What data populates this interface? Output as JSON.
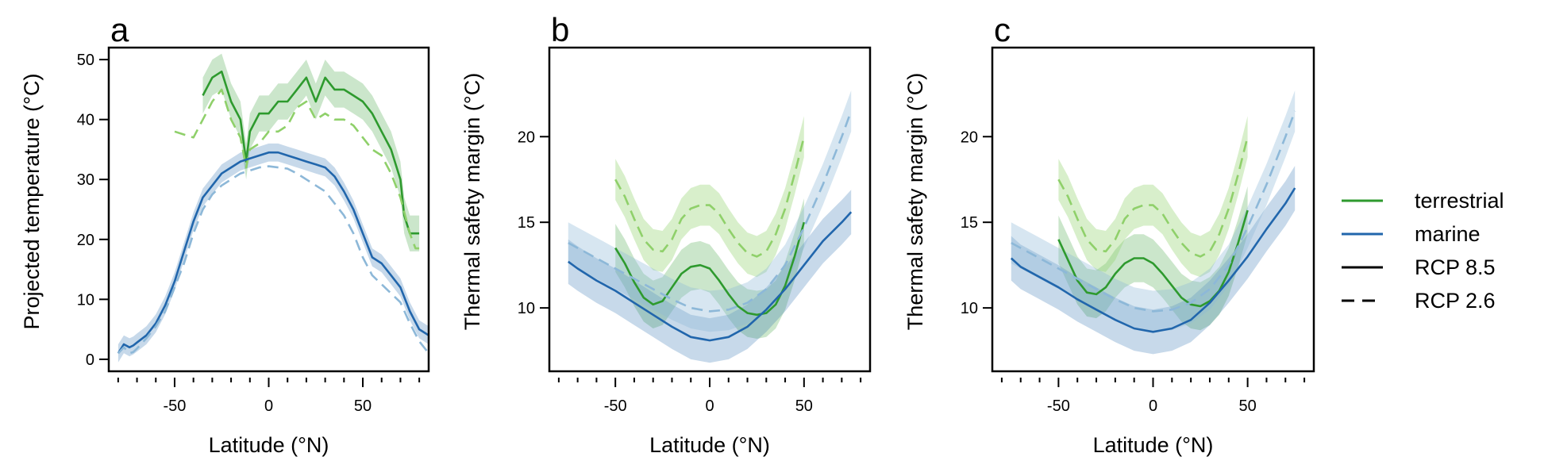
{
  "colors": {
    "terrestrial": "#2e9a2e",
    "terrestrial_light": "#8fd06a",
    "marine": "#2166ac",
    "marine_light": "#8db8d8"
  },
  "legend": {
    "items": [
      {
        "label": "terrestrial",
        "style": "solid",
        "color": "#2e9a2e"
      },
      {
        "label": "marine",
        "style": "solid",
        "color": "#2166ac"
      },
      {
        "label": "RCP 8.5",
        "style": "solid",
        "color": "#000000"
      },
      {
        "label": "RCP 2.6",
        "style": "dashed",
        "color": "#000000"
      }
    ]
  },
  "chart_data": [
    {
      "panel": "a",
      "type": "line",
      "xlabel": "Latitude (°N)",
      "ylabel": "Projected temperature (°C)",
      "xlim": [
        -85,
        85
      ],
      "ylim": [
        -2,
        52
      ],
      "xticks": [
        -50,
        0,
        50
      ],
      "yticks": [
        0,
        10,
        20,
        30,
        40,
        50
      ],
      "series": [
        {
          "group": "terrestrial",
          "scenario": "RCP 8.5",
          "band": 3,
          "x": [
            -45,
            -40,
            -35,
            -30,
            -25,
            -20,
            -15,
            -12,
            -10,
            -5,
            0,
            5,
            10,
            15,
            20,
            25,
            30,
            35,
            40,
            45,
            50,
            55,
            60,
            65,
            70,
            72,
            75,
            78,
            80
          ],
          "y": [
            null,
            null,
            44,
            47,
            48,
            43,
            40,
            33,
            38,
            41,
            41,
            43,
            43,
            45,
            47,
            43,
            47,
            45,
            45,
            44,
            43,
            41,
            38,
            35,
            30,
            24,
            21,
            21,
            21
          ]
        },
        {
          "group": "terrestrial",
          "scenario": "RCP 2.6",
          "band": 0,
          "x": [
            -50,
            -45,
            -40,
            -35,
            -30,
            -25,
            -20,
            -15,
            -12,
            -10,
            -5,
            0,
            5,
            10,
            15,
            20,
            25,
            30,
            35,
            40,
            45,
            50,
            55,
            60,
            65,
            70,
            75,
            78,
            80
          ],
          "y": [
            38,
            37.5,
            37,
            40,
            43,
            45,
            40,
            37,
            32,
            35,
            36,
            38,
            38,
            39,
            42,
            43,
            40,
            41,
            40,
            40,
            39,
            37,
            35,
            34,
            31,
            27,
            21,
            18.5,
            18.5
          ]
        },
        {
          "group": "marine",
          "scenario": "RCP 8.5",
          "band": 1.5,
          "x": [
            -80,
            -77,
            -74,
            -72,
            -70,
            -65,
            -60,
            -55,
            -50,
            -45,
            -40,
            -35,
            -30,
            -25,
            -20,
            -15,
            -10,
            -5,
            0,
            5,
            10,
            15,
            20,
            25,
            30,
            35,
            40,
            45,
            50,
            55,
            60,
            65,
            70,
            75,
            80,
            85
          ],
          "y": [
            1,
            2.5,
            2,
            2.3,
            2.8,
            4,
            6,
            9,
            13,
            18,
            23,
            27,
            29,
            31,
            32,
            33,
            33.5,
            34,
            34.5,
            34.5,
            34,
            33.5,
            33,
            32.5,
            32,
            30.5,
            28,
            25,
            21,
            17,
            16,
            14,
            12,
            8,
            5,
            4
          ]
        },
        {
          "group": "marine",
          "scenario": "RCP 2.6",
          "band": 0,
          "x": [
            -80,
            -77,
            -74,
            -72,
            -70,
            -65,
            -60,
            -55,
            -50,
            -45,
            -40,
            -35,
            -30,
            -25,
            -20,
            -15,
            -10,
            -5,
            0,
            5,
            10,
            15,
            20,
            25,
            30,
            35,
            40,
            45,
            50,
            55,
            60,
            65,
            70,
            75,
            80,
            85
          ],
          "y": [
            1,
            2,
            1,
            1.2,
            1.8,
            3.5,
            5.5,
            8,
            12,
            16,
            21,
            25,
            27.5,
            29,
            30,
            31,
            31.5,
            32,
            32.2,
            32,
            31.8,
            31,
            30,
            29,
            28,
            26,
            24,
            21,
            17,
            14,
            12.5,
            11,
            9.5,
            6,
            3,
            1
          ]
        }
      ]
    },
    {
      "panel": "b",
      "type": "line",
      "xlabel": "Latitude (°N)",
      "ylabel": "Thermal safety margin (°C)",
      "xlim": [
        -85,
        85
      ],
      "ylim": [
        6.3,
        25.2
      ],
      "xticks": [
        -50,
        0,
        50
      ],
      "yticks": [
        10,
        15,
        20
      ],
      "series": [
        {
          "group": "terrestrial",
          "scenario": "RCP 8.5",
          "band": 1.4,
          "x": [
            -50,
            -45,
            -40,
            -35,
            -30,
            -25,
            -20,
            -15,
            -10,
            -5,
            0,
            5,
            10,
            15,
            20,
            25,
            30,
            35,
            40,
            45,
            50
          ],
          "y": [
            13.5,
            12.6,
            11.5,
            10.6,
            10.2,
            10.4,
            11.2,
            12,
            12.4,
            12.5,
            12.3,
            11.6,
            10.8,
            10.1,
            9.7,
            9.6,
            9.7,
            10.2,
            11.3,
            13,
            15
          ]
        },
        {
          "group": "terrestrial",
          "scenario": "RCP 2.6",
          "band": 1.2,
          "x": [
            -50,
            -45,
            -40,
            -35,
            -30,
            -25,
            -20,
            -15,
            -10,
            -5,
            0,
            5,
            10,
            15,
            20,
            25,
            30,
            35,
            40,
            45,
            50
          ],
          "y": [
            17.5,
            16.5,
            15.2,
            14,
            13.4,
            13.3,
            14,
            15.2,
            15.8,
            16,
            16,
            15.5,
            14.6,
            13.8,
            13.2,
            13,
            13.3,
            14.3,
            15.8,
            17.8,
            20
          ]
        },
        {
          "group": "marine",
          "scenario": "RCP 8.5",
          "band": 1.3,
          "x": [
            -75,
            -70,
            -60,
            -50,
            -40,
            -30,
            -20,
            -10,
            0,
            10,
            20,
            30,
            40,
            50,
            60,
            70,
            75
          ],
          "y": [
            12.7,
            12.3,
            11.6,
            11,
            10.3,
            9.6,
            8.9,
            8.3,
            8.1,
            8.3,
            8.9,
            9.9,
            11.1,
            12.5,
            13.9,
            15,
            15.6
          ]
        },
        {
          "group": "marine",
          "scenario": "RCP 2.6",
          "band": 1.2,
          "x": [
            -75,
            -70,
            -60,
            -50,
            -40,
            -30,
            -20,
            -10,
            0,
            10,
            20,
            30,
            40,
            50,
            60,
            70,
            75
          ],
          "y": [
            13.8,
            13.5,
            12.9,
            12.3,
            11.7,
            11.1,
            10.5,
            10,
            9.8,
            9.9,
            10.3,
            11.1,
            12.5,
            14.7,
            17.2,
            20,
            21.5
          ]
        }
      ]
    },
    {
      "panel": "c",
      "type": "line",
      "xlabel": "Latitude (°N)",
      "ylabel": "Thermal safety margin (°C)",
      "xlim": [
        -85,
        85
      ],
      "ylim": [
        6.3,
        25.2
      ],
      "xticks": [
        -50,
        0,
        50
      ],
      "yticks": [
        10,
        15,
        20
      ],
      "series": [
        {
          "group": "terrestrial",
          "scenario": "RCP 8.5",
          "band": 1.4,
          "x": [
            -50,
            -45,
            -40,
            -35,
            -30,
            -25,
            -20,
            -15,
            -10,
            -5,
            0,
            5,
            10,
            15,
            20,
            25,
            30,
            35,
            40,
            45,
            50
          ],
          "y": [
            14,
            12.8,
            11.6,
            10.9,
            10.8,
            11.2,
            12,
            12.6,
            12.9,
            12.9,
            12.6,
            12,
            11.3,
            10.6,
            10.2,
            10.1,
            10.4,
            11,
            12.1,
            13.8,
            15.7
          ]
        },
        {
          "group": "terrestrial",
          "scenario": "RCP 2.6",
          "band": 1.2,
          "x": [
            -50,
            -45,
            -40,
            -35,
            -30,
            -25,
            -20,
            -15,
            -10,
            -5,
            0,
            5,
            10,
            15,
            20,
            25,
            30,
            35,
            40,
            45,
            50
          ],
          "y": [
            17.5,
            16.5,
            15.2,
            14,
            13.4,
            13.3,
            14,
            15.2,
            15.8,
            16,
            16,
            15.5,
            14.6,
            13.8,
            13.2,
            13,
            13.3,
            14.3,
            15.8,
            17.8,
            20
          ]
        },
        {
          "group": "marine",
          "scenario": "RCP 8.5",
          "band": 1.3,
          "x": [
            -75,
            -70,
            -60,
            -50,
            -40,
            -30,
            -20,
            -10,
            0,
            10,
            20,
            30,
            40,
            50,
            60,
            70,
            75
          ],
          "y": [
            12.9,
            12.4,
            11.8,
            11.2,
            10.5,
            9.9,
            9.3,
            8.8,
            8.6,
            8.8,
            9.3,
            10.3,
            11.6,
            13,
            14.6,
            16.1,
            17
          ]
        },
        {
          "group": "marine",
          "scenario": "RCP 2.6",
          "band": 1.2,
          "x": [
            -75,
            -70,
            -60,
            -50,
            -40,
            -30,
            -20,
            -10,
            0,
            10,
            20,
            30,
            40,
            50,
            60,
            70,
            75
          ],
          "y": [
            13.8,
            13.5,
            12.9,
            12.3,
            11.7,
            11.1,
            10.5,
            10,
            9.8,
            9.9,
            10.3,
            11.1,
            12.5,
            14.7,
            17.2,
            20,
            21.5
          ]
        }
      ]
    }
  ]
}
